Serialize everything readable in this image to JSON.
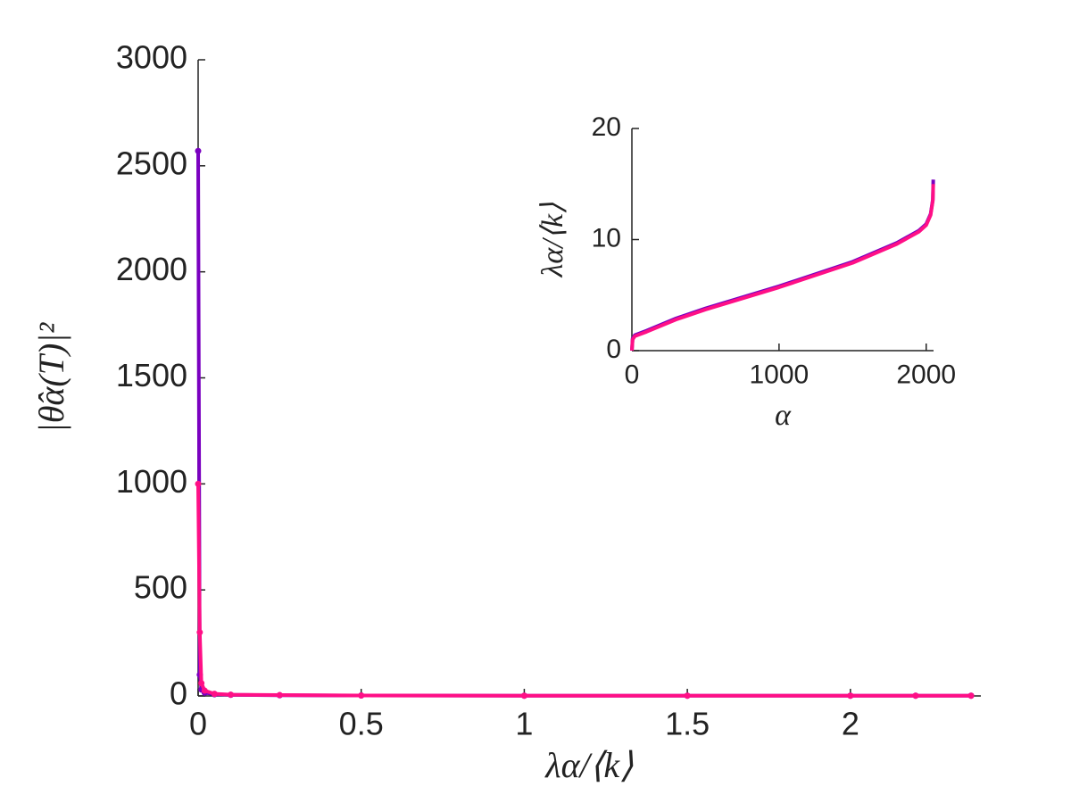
{
  "chart_data": [
    {
      "type": "line",
      "xlabel": "λα/⟨k⟩",
      "ylabel": "|θ̂α(T)|²",
      "x": [
        0,
        0.005,
        0.01,
        0.02,
        0.05,
        0.1,
        0.25,
        0.5,
        1,
        1.5,
        2,
        2.2,
        2.37
      ],
      "series": [
        {
          "color": "#7a00c0",
          "values": [
            2570,
            100,
            30,
            15,
            8,
            5,
            3,
            2,
            1,
            1,
            1,
            1,
            1
          ]
        },
        {
          "color": "#ff0f86",
          "values": [
            1000,
            300,
            60,
            25,
            10,
            6,
            4,
            2,
            1,
            1,
            1,
            1,
            1
          ]
        }
      ],
      "markers": true,
      "xlim": [
        0,
        2.4
      ],
      "xticks": [
        0,
        0.5,
        1,
        1.5,
        2
      ],
      "ylim": [
        0,
        3000
      ],
      "yticks": [
        0,
        500,
        1000,
        1500,
        2000,
        2500,
        3000
      ]
    },
    {
      "type": "line",
      "xlabel": "α",
      "ylabel": "λα/⟨k⟩",
      "x": [
        0,
        5,
        20,
        100,
        300,
        500,
        1000,
        1500,
        1800,
        1950,
        2000,
        2030,
        2045,
        2048
      ],
      "series": [
        {
          "color": "#7a00c0",
          "values": [
            0,
            1.1,
            1.4,
            1.8,
            2.9,
            3.8,
            5.8,
            8.0,
            9.7,
            10.8,
            11.4,
            12.3,
            13.6,
            15.4
          ]
        },
        {
          "color": "#ff0f86",
          "values": [
            0,
            1.0,
            1.3,
            1.7,
            2.8,
            3.7,
            5.7,
            7.9,
            9.6,
            10.7,
            11.3,
            12.2,
            13.5,
            15.0
          ]
        }
      ],
      "markers": false,
      "xlim": [
        0,
        2050
      ],
      "xticks": [
        0,
        1000,
        2000
      ],
      "ylim": [
        0,
        20
      ],
      "yticks": [
        0,
        10,
        20
      ]
    }
  ]
}
